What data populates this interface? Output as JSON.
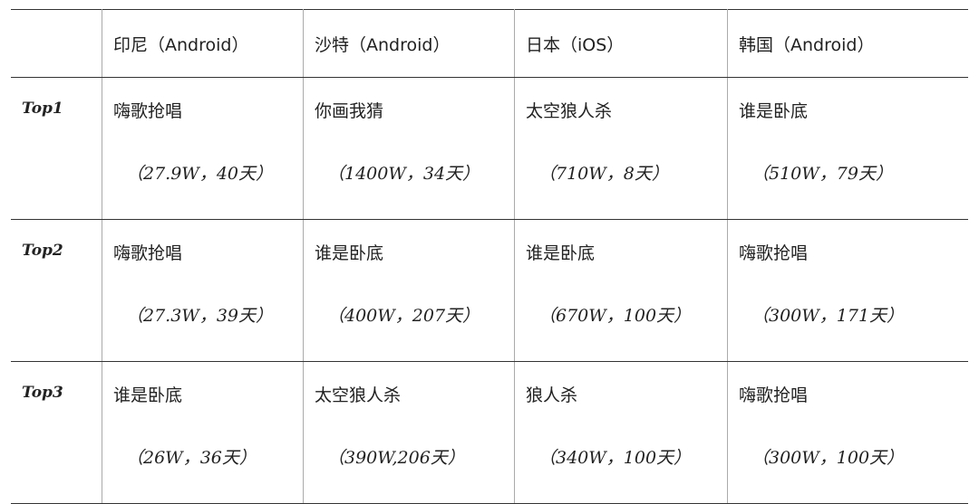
{
  "header": [
    "",
    "印尼（Android）",
    "沙特（Android）",
    "日本（iOS）",
    "韩国（Android）"
  ],
  "rows": [
    {
      "rank": "Top1",
      "cells": [
        {
          "name": "嗨歌抢唱",
          "stat": "（27.9W，40天）"
        },
        {
          "name": "你画我猜",
          "stat": "（1400W，34天）"
        },
        {
          "name": "太空狼人杀",
          "stat": "（710W，8天）"
        },
        {
          "name": "谁是卧底",
          "stat": "（510W，79天）"
        }
      ]
    },
    {
      "rank": "Top2",
      "cells": [
        {
          "name": "嗨歌抢唱",
          "stat": "（27.3W，39天）"
        },
        {
          "name": "谁是卧底",
          "stat": "（400W，207天）"
        },
        {
          "name": "谁是卧底",
          "stat": "（670W，100天）"
        },
        {
          "name": "嗨歌抢唱",
          "stat": "（300W，171天）"
        }
      ]
    },
    {
      "rank": "Top3",
      "cells": [
        {
          "name": "谁是卧底",
          "stat": "（26W，36天）"
        },
        {
          "name": "太空狼人杀",
          "stat": "（390W,206天）"
        },
        {
          "name": "狼人杀",
          "stat": "（340W，100天）"
        },
        {
          "name": "嗨歌抢唱",
          "stat": "（300W，100天）"
        }
      ]
    }
  ]
}
